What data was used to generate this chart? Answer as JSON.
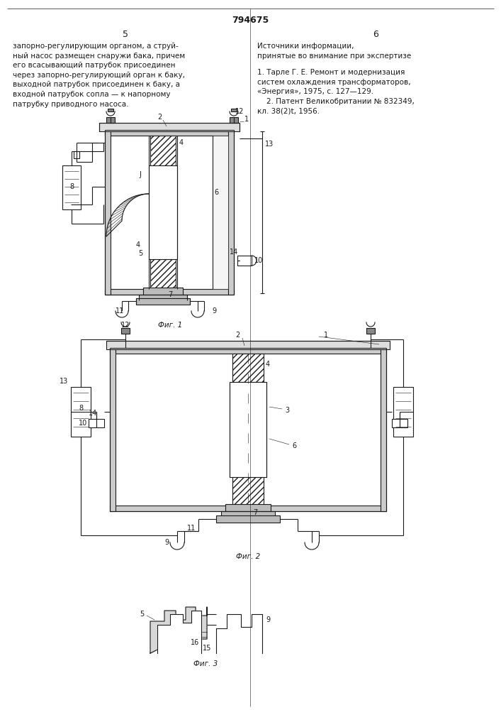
{
  "page_number": "794675",
  "col_left": "5",
  "col_right": "6",
  "text_left": "запорно-регулирующим органом, а струй-\nный насос размещен снаружи бака, причем\nего всасывающий патрубок присоединен\nчерез запорно-регулирующий орган к баку,\nвыходной патрубок присоединен к баку, а\nвходной патрубок сопла — к напорному\nпатрубку приводного насоса.",
  "text_right_title": "Источники информации,\nпринятые во внимание при экспертизе",
  "text_right_body": "1. Тарле Г. Е. Ремонт и модернизация\nсистем охлаждения трансформаторов,\n«Энергия», 1975, с. 127—129.\n    2. Патент Великобритании № 832349,\nкл. 38(2)t, 1956.",
  "fig1_caption": "Фиг. 1",
  "fig2_caption": "Фиг. 2",
  "fig3_caption": "Фиг. 3",
  "bg_color": "#ffffff",
  "line_color": "#1a1a1a",
  "text_color": "#1a1a1a",
  "font_size_body": 7.5,
  "font_size_label": 7.0,
  "font_size_pagenum": 9.0
}
